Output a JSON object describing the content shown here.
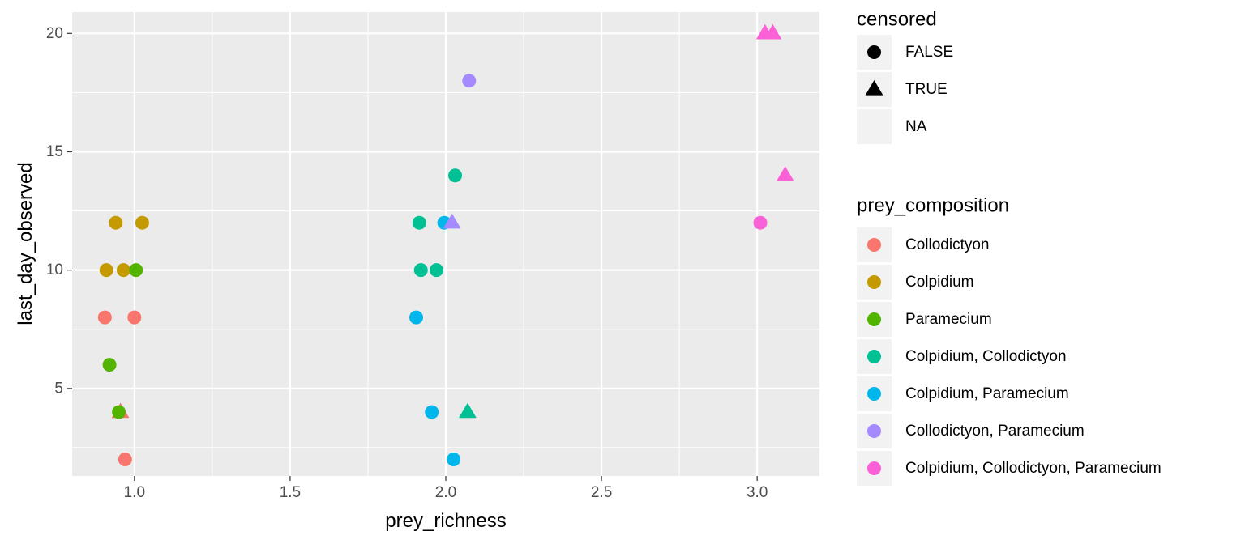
{
  "chart_data": {
    "type": "scatter",
    "xlabel": "prey_richness",
    "ylabel": "last_day_observed",
    "xlim": [
      0.8,
      3.2
    ],
    "ylim": [
      1.3,
      20.9
    ],
    "x_ticks": [
      1.0,
      1.5,
      2.0,
      2.5,
      3.0
    ],
    "x_tick_labels": [
      "1.0",
      "1.5",
      "2.0",
      "2.5",
      "3.0"
    ],
    "y_ticks": [
      5,
      10,
      15,
      20
    ],
    "y_tick_labels": [
      "5",
      "10",
      "15",
      "20"
    ],
    "x_minor": [
      1.25,
      1.75,
      2.25,
      2.75
    ],
    "y_minor": [
      2.5,
      7.5,
      12.5,
      17.5
    ],
    "grid": true,
    "panel_color": "#ebebeb",
    "legend_position": "right",
    "shape_legend": {
      "title": "censored",
      "entries": [
        {
          "label": "FALSE",
          "shape": "circle"
        },
        {
          "label": "TRUE",
          "shape": "triangle"
        },
        {
          "label": "NA",
          "shape": "none"
        }
      ]
    },
    "color_legend": {
      "title": "prey_composition",
      "entries": [
        {
          "label": "Collodictyon",
          "color": "#F8766D"
        },
        {
          "label": "Colpidium",
          "color": "#C49A00"
        },
        {
          "label": "Paramecium",
          "color": "#53B400"
        },
        {
          "label": "Colpidium, Collodictyon",
          "color": "#00C094"
        },
        {
          "label": "Colpidium, Paramecium",
          "color": "#00B6EB"
        },
        {
          "label": "Collodictyon, Paramecium",
          "color": "#A58AFF"
        },
        {
          "label": "Colpidium, Collodictyon, Paramecium",
          "color": "#FB61D7"
        }
      ]
    },
    "series": [
      {
        "color": "#F8766D",
        "points": [
          {
            "x": 0.905,
            "y": 8,
            "censored": "FALSE"
          },
          {
            "x": 1.0,
            "y": 8,
            "censored": "FALSE"
          },
          {
            "x": 0.97,
            "y": 2,
            "censored": "FALSE"
          },
          {
            "x": 0.955,
            "y": 4,
            "censored": "TRUE"
          }
        ]
      },
      {
        "color": "#C49A00",
        "points": [
          {
            "x": 0.94,
            "y": 12,
            "censored": "FALSE"
          },
          {
            "x": 1.025,
            "y": 12,
            "censored": "FALSE"
          },
          {
            "x": 0.91,
            "y": 10,
            "censored": "FALSE"
          },
          {
            "x": 0.965,
            "y": 10,
            "censored": "FALSE"
          }
        ]
      },
      {
        "color": "#53B400",
        "points": [
          {
            "x": 1.005,
            "y": 10,
            "censored": "FALSE"
          },
          {
            "x": 0.92,
            "y": 6,
            "censored": "FALSE"
          },
          {
            "x": 0.95,
            "y": 4,
            "censored": "FALSE"
          }
        ]
      },
      {
        "color": "#00C094",
        "points": [
          {
            "x": 2.03,
            "y": 14,
            "censored": "FALSE"
          },
          {
            "x": 1.915,
            "y": 12,
            "censored": "FALSE"
          },
          {
            "x": 1.92,
            "y": 10,
            "censored": "FALSE"
          },
          {
            "x": 1.97,
            "y": 10,
            "censored": "FALSE"
          },
          {
            "x": 2.07,
            "y": 4,
            "censored": "TRUE"
          }
        ]
      },
      {
        "color": "#00B6EB",
        "points": [
          {
            "x": 1.995,
            "y": 12,
            "censored": "FALSE"
          },
          {
            "x": 1.905,
            "y": 8,
            "censored": "FALSE"
          },
          {
            "x": 1.955,
            "y": 4,
            "censored": "FALSE"
          },
          {
            "x": 2.025,
            "y": 2,
            "censored": "FALSE"
          }
        ]
      },
      {
        "color": "#A58AFF",
        "points": [
          {
            "x": 2.075,
            "y": 18,
            "censored": "FALSE"
          },
          {
            "x": 2.02,
            "y": 12,
            "censored": "TRUE"
          }
        ]
      },
      {
        "color": "#FB61D7",
        "points": [
          {
            "x": 3.025,
            "y": 20,
            "censored": "TRUE"
          },
          {
            "x": 3.05,
            "y": 20,
            "censored": "TRUE"
          },
          {
            "x": 3.09,
            "y": 14,
            "censored": "TRUE"
          },
          {
            "x": 3.01,
            "y": 12,
            "censored": "FALSE"
          }
        ]
      }
    ]
  }
}
